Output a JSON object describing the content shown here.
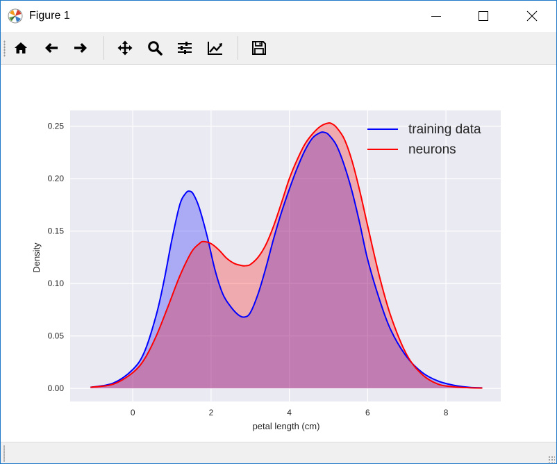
{
  "window": {
    "title": "Figure 1"
  },
  "toolbar": {
    "tools": [
      {
        "name": "home-icon"
      },
      {
        "name": "back-arrow-icon"
      },
      {
        "name": "forward-arrow-icon"
      },
      {
        "name": "pan-icon"
      },
      {
        "name": "zoom-icon"
      },
      {
        "name": "subplots-icon"
      },
      {
        "name": "edit-axis-icon"
      },
      {
        "name": "save-icon"
      }
    ]
  },
  "colors": {
    "training": "#0000ff",
    "neurons": "#ff0000",
    "axes_bg": "#eaeaf2",
    "grid": "#ffffff"
  },
  "chart_data": {
    "type": "area",
    "title": "",
    "xlabel": "petal length (cm)",
    "ylabel": "Density",
    "xlim": [
      -1.6,
      9.4
    ],
    "ylim": [
      -0.0125,
      0.265
    ],
    "xticks": [
      0,
      2,
      4,
      6,
      8
    ],
    "xtick_labels": [
      "0",
      "2",
      "4",
      "6",
      "8"
    ],
    "yticks": [
      0.0,
      0.05,
      0.1,
      0.15,
      0.2,
      0.25
    ],
    "ytick_labels": [
      "0.00",
      "0.05",
      "0.10",
      "0.15",
      "0.20",
      "0.25"
    ],
    "grid": true,
    "legend_position": "top-right",
    "series": [
      {
        "name": "training data",
        "color": "#0000ff",
        "x": [
          -1.08,
          -0.5,
          0.0,
          0.3,
          0.6,
          0.8,
          1.0,
          1.2,
          1.35,
          1.45,
          1.55,
          1.7,
          1.9,
          2.1,
          2.3,
          2.5,
          2.7,
          2.85,
          3.0,
          3.2,
          3.4,
          3.6,
          3.8,
          4.0,
          4.2,
          4.4,
          4.6,
          4.8,
          4.9,
          5.0,
          5.2,
          5.4,
          5.6,
          5.8,
          6.0,
          6.3,
          6.6,
          7.0,
          7.4,
          7.8,
          8.2,
          8.6,
          8.93
        ],
        "y": [
          0.001,
          0.005,
          0.018,
          0.035,
          0.07,
          0.103,
          0.142,
          0.175,
          0.186,
          0.188,
          0.185,
          0.172,
          0.145,
          0.113,
          0.09,
          0.078,
          0.07,
          0.068,
          0.072,
          0.09,
          0.115,
          0.143,
          0.168,
          0.19,
          0.21,
          0.227,
          0.239,
          0.244,
          0.244,
          0.242,
          0.232,
          0.213,
          0.188,
          0.157,
          0.123,
          0.085,
          0.055,
          0.03,
          0.015,
          0.007,
          0.003,
          0.001,
          0.0005
        ]
      },
      {
        "name": "neurons",
        "color": "#ff0000",
        "x": [
          -1.08,
          -0.5,
          0.0,
          0.3,
          0.6,
          0.9,
          1.2,
          1.5,
          1.7,
          1.8,
          2.0,
          2.2,
          2.4,
          2.6,
          2.8,
          2.9,
          3.0,
          3.2,
          3.4,
          3.6,
          3.8,
          4.0,
          4.2,
          4.4,
          4.6,
          4.8,
          5.0,
          5.1,
          5.2,
          5.4,
          5.6,
          5.8,
          6.0,
          6.3,
          6.6,
          7.0,
          7.4,
          7.8,
          8.2,
          8.6,
          8.93
        ],
        "y": [
          0.001,
          0.004,
          0.015,
          0.028,
          0.05,
          0.078,
          0.107,
          0.13,
          0.138,
          0.14,
          0.138,
          0.132,
          0.124,
          0.119,
          0.117,
          0.117,
          0.118,
          0.125,
          0.137,
          0.155,
          0.177,
          0.2,
          0.218,
          0.233,
          0.243,
          0.25,
          0.253,
          0.252,
          0.249,
          0.238,
          0.217,
          0.188,
          0.155,
          0.107,
          0.068,
          0.032,
          0.013,
          0.004,
          0.0015,
          0.0006,
          0.0003
        ]
      }
    ]
  }
}
